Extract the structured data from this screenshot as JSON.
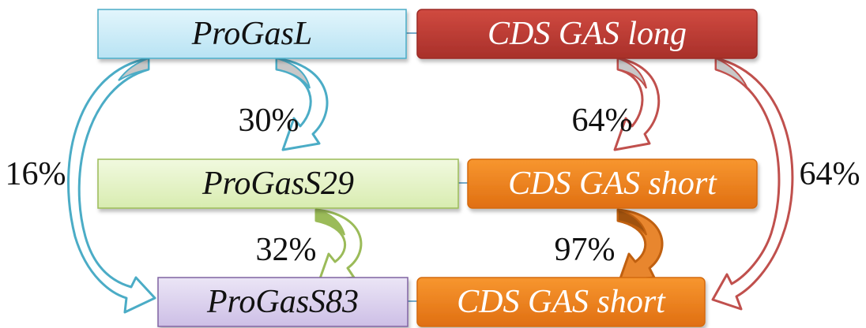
{
  "boxes": {
    "progasl": {
      "label": "ProGasL",
      "fill": "#c9ecf8",
      "stroke": "#4bacc6",
      "text_color": "#111111"
    },
    "cds_gas_long": {
      "label": "CDS GAS long",
      "fill": "#c0392f",
      "stroke": "#9b2b25",
      "text_color": "#ffffff"
    },
    "progass29": {
      "label": "ProGasS29",
      "fill": "#e6f3c9",
      "stroke": "#9bbb59",
      "text_color": "#111111"
    },
    "cds_gas_short_top": {
      "label": "CDS GAS short",
      "fill": "#f0801e",
      "stroke": "#d46a10",
      "text_color": "#ffffff"
    },
    "progass83": {
      "label": "ProGasS83",
      "fill": "#ddd4ee",
      "stroke": "#8064a2",
      "text_color": "#111111"
    },
    "cds_gas_short_bottom": {
      "label": "CDS GAS short",
      "fill": "#f0801e",
      "stroke": "#d46a10",
      "text_color": "#ffffff"
    }
  },
  "percentages": {
    "progasl_to_progass29": "30%",
    "cds_long_to_cds_short": "64%",
    "progasl_to_progass83": "16%",
    "cds_long_to_cds_short_bottom": "64%",
    "progass29_to_progass83": "32%",
    "cds_short_to_cds_short": "97%"
  },
  "arrow_colors": {
    "blue": "#4bacc6",
    "red": "#c0504d",
    "green": "#9bbb59",
    "orange": "#d46a10",
    "fold": "#c8c8c8"
  }
}
